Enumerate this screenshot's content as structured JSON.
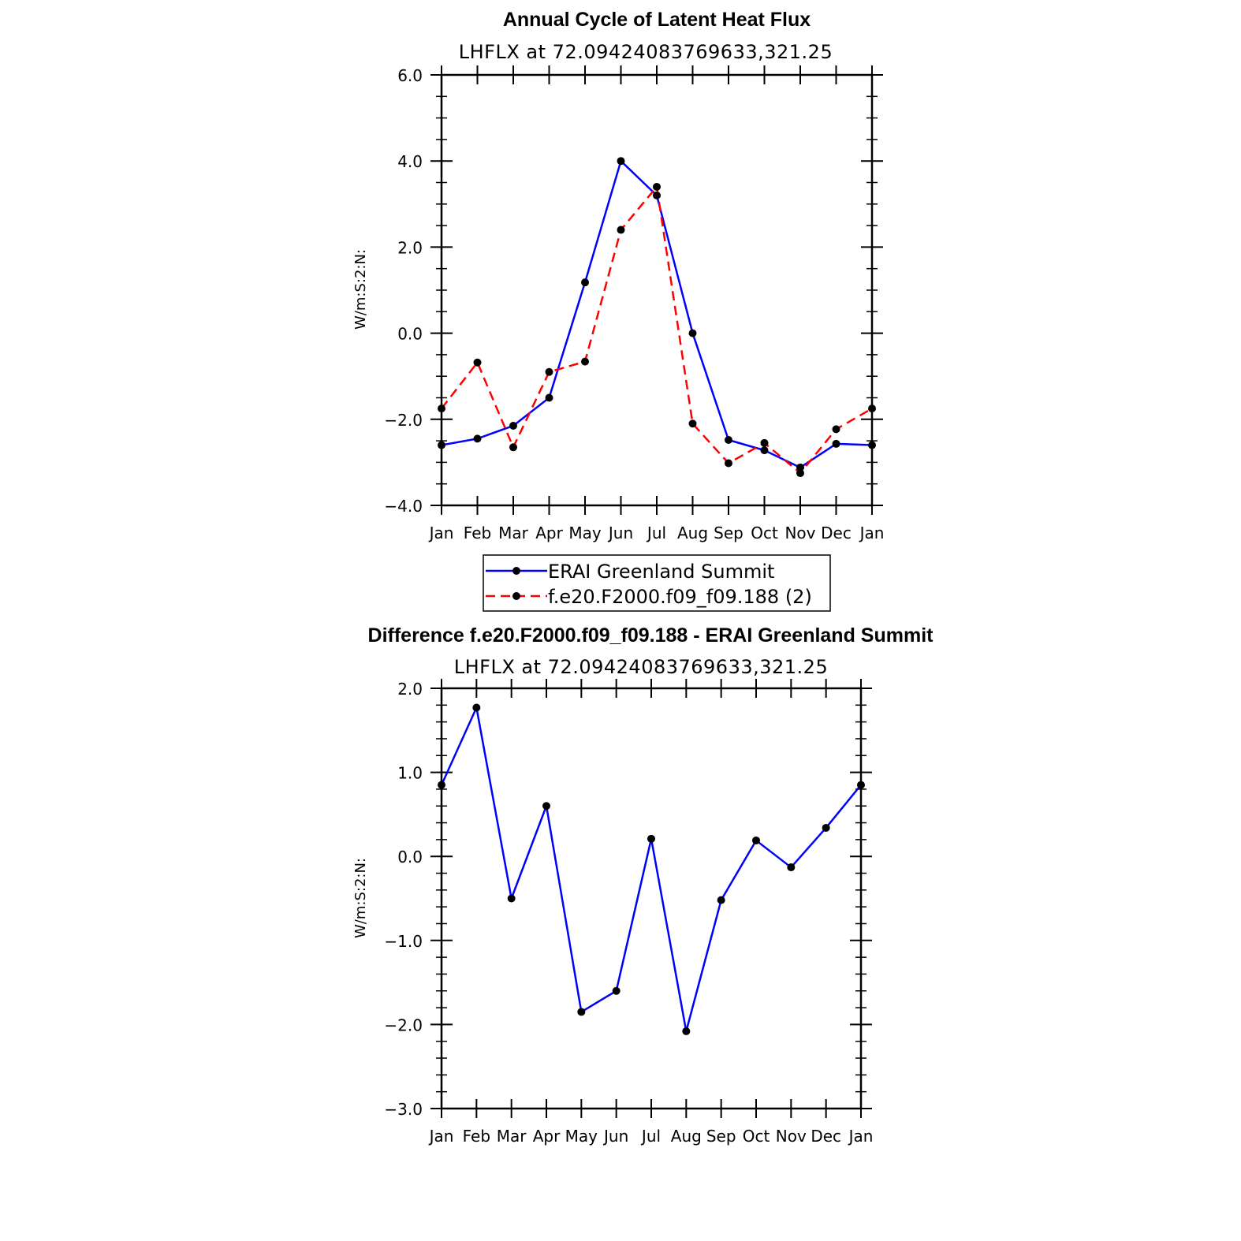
{
  "chart_data": [
    {
      "type": "line",
      "title": "Annual Cycle of Latent Heat Flux",
      "subtitle": "LHFLX at 72.09424083769633,321.25",
      "ylabel": "W/m:S:2:N:",
      "ylim": [
        -4.0,
        6.0
      ],
      "yticks": [
        -4.0,
        -2.0,
        0.0,
        2.0,
        4.0,
        6.0
      ],
      "ytick_labels": [
        "−4.0",
        "−2.0",
        "0.0",
        "2.0",
        "4.0",
        "6.0"
      ],
      "ytick_minor_step": 0.5,
      "categories": [
        "Jan",
        "Feb",
        "Mar",
        "Apr",
        "May",
        "Jun",
        "Jul",
        "Aug",
        "Sep",
        "Oct",
        "Nov",
        "Dec",
        "Jan"
      ],
      "legend_position": "bottom",
      "series": [
        {
          "name": "ERAI Greenland Summit",
          "color": "#0000ff",
          "dash": "solid",
          "values": [
            -2.6,
            -2.45,
            -2.15,
            -1.5,
            1.18,
            4.0,
            3.2,
            0.0,
            -2.48,
            -2.72,
            -3.12,
            -2.57,
            -2.6
          ]
        },
        {
          "name": "f.e20.F2000.f09_f09.188 (2)",
          "color": "#ff0000",
          "dash": "dashed",
          "values": [
            -1.75,
            -0.68,
            -2.65,
            -0.9,
            -0.66,
            2.4,
            3.4,
            -2.1,
            -3.02,
            -2.55,
            -3.25,
            -2.23,
            -1.75
          ]
        }
      ]
    },
    {
      "type": "line",
      "title": "Difference f.e20.F2000.f09_f09.188 - ERAI Greenland Summit",
      "subtitle": "LHFLX at 72.09424083769633,321.25",
      "ylabel": "W/m:S:2:N:",
      "ylim": [
        -3.0,
        2.0
      ],
      "yticks": [
        -3.0,
        -2.0,
        -1.0,
        0.0,
        1.0,
        2.0
      ],
      "ytick_labels": [
        "−3.0",
        "−2.0",
        "−1.0",
        "0.0",
        "1.0",
        "2.0"
      ],
      "ytick_minor_step": 0.2,
      "categories": [
        "Jan",
        "Feb",
        "Mar",
        "Apr",
        "May",
        "Jun",
        "Jul",
        "Aug",
        "Sep",
        "Oct",
        "Nov",
        "Dec",
        "Jan"
      ],
      "series": [
        {
          "color": "#0000ff",
          "dash": "solid",
          "values": [
            0.85,
            1.77,
            -0.5,
            0.6,
            -1.85,
            -1.6,
            0.21,
            -2.08,
            -0.52,
            0.19,
            -0.13,
            0.34,
            0.85
          ]
        }
      ]
    }
  ]
}
